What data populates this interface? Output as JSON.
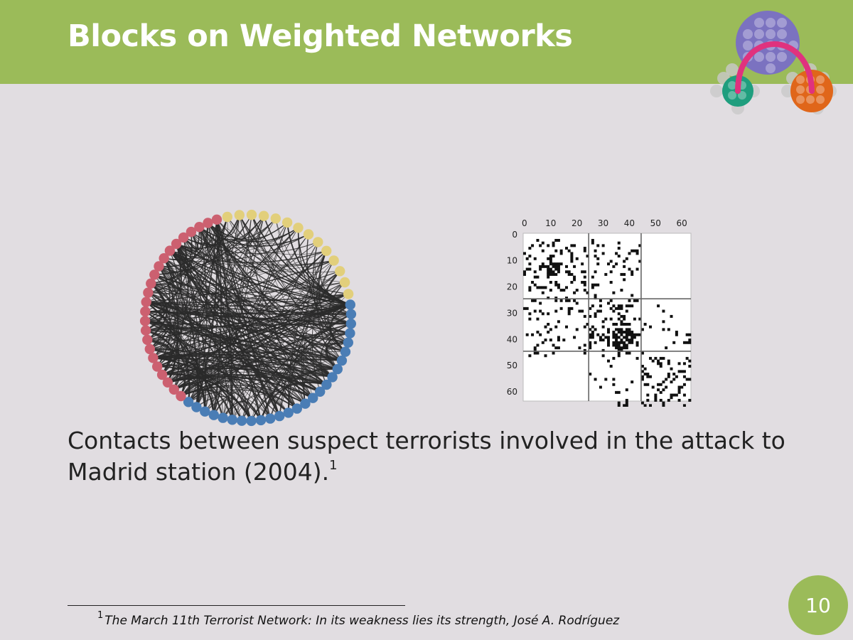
{
  "slide": {
    "title": "Blocks on Weighted Networks",
    "caption": "Contacts between suspect terrorists involved in the attack to Madrid station (2004).",
    "caption_footnote_mark": "1",
    "footnote_mark": "1",
    "footnote": "The March 11th Terrorist Network: In its weakness lies its strength, José A. Rodríguez",
    "page_number": "10"
  },
  "colors": {
    "header": "#9bbb59",
    "background": "#e1dde1",
    "group_yellow": "#e2cf7b",
    "group_blue": "#4a7db5",
    "group_red": "#cc6070",
    "logo_purple": "#7b72c0",
    "logo_teal": "#1f9e7e",
    "logo_orange": "#e0661a",
    "logo_arc": "#e0327e"
  },
  "icons": {
    "logo": "block-network-logo-icon"
  },
  "chart_data": {
    "type": "heatmap",
    "description_free": true,
    "n_nodes": 64,
    "groups": [
      {
        "color": "#e2cf7b",
        "count": 14
      },
      {
        "color": "#4a7db5",
        "count": 26
      },
      {
        "color": "#cc6070",
        "count": 24
      }
    ],
    "block_boundaries": [
      25,
      45
    ],
    "xticks": [
      0,
      10,
      20,
      30,
      40,
      50,
      60
    ],
    "yticks": [
      0,
      10,
      20,
      30,
      40,
      50,
      60
    ],
    "xlim": [
      0,
      64
    ],
    "ylim": [
      0,
      64
    ]
  }
}
